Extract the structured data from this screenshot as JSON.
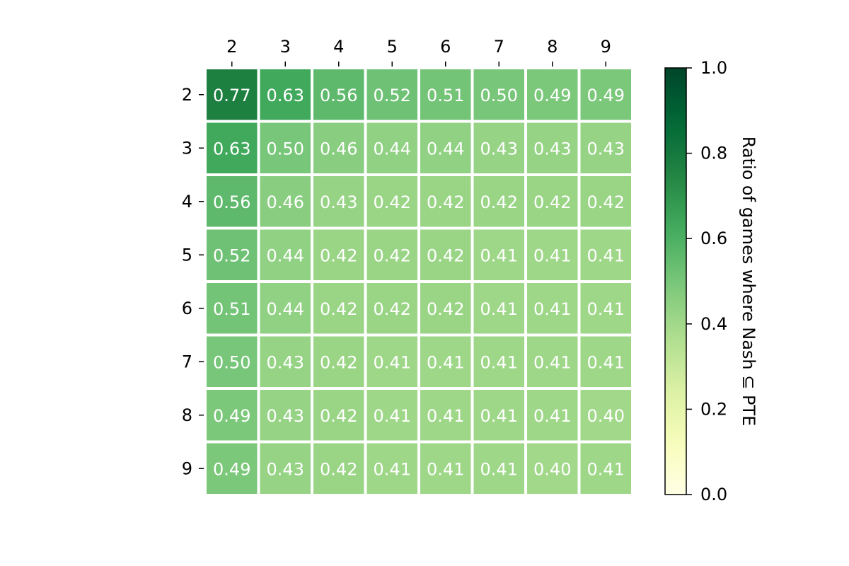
{
  "chart_data": {
    "type": "heatmap",
    "x_categories": [
      "2",
      "3",
      "4",
      "5",
      "6",
      "7",
      "8",
      "9"
    ],
    "y_categories": [
      "2",
      "3",
      "4",
      "5",
      "6",
      "7",
      "8",
      "9"
    ],
    "values": [
      [
        0.77,
        0.63,
        0.56,
        0.52,
        0.51,
        0.5,
        0.49,
        0.49
      ],
      [
        0.63,
        0.5,
        0.46,
        0.44,
        0.44,
        0.43,
        0.43,
        0.43
      ],
      [
        0.56,
        0.46,
        0.43,
        0.42,
        0.42,
        0.42,
        0.42,
        0.42
      ],
      [
        0.52,
        0.44,
        0.42,
        0.42,
        0.42,
        0.41,
        0.41,
        0.41
      ],
      [
        0.51,
        0.44,
        0.42,
        0.42,
        0.42,
        0.41,
        0.41,
        0.41
      ],
      [
        0.5,
        0.43,
        0.42,
        0.41,
        0.41,
        0.41,
        0.41,
        0.41
      ],
      [
        0.49,
        0.43,
        0.42,
        0.41,
        0.41,
        0.41,
        0.41,
        0.4
      ],
      [
        0.49,
        0.43,
        0.42,
        0.41,
        0.41,
        0.41,
        0.4,
        0.41
      ]
    ],
    "value_format": "0.00",
    "colormap": "YlGn",
    "color_range": [
      0.0,
      1.0
    ],
    "x_axis_position": "top",
    "colorbar": {
      "label": "Ratio of games where Nash ⊆ PTE",
      "ticks": [
        "0.0",
        "0.2",
        "0.4",
        "0.6",
        "0.8",
        "1.0"
      ],
      "tick_values": [
        0.0,
        0.2,
        0.4,
        0.6,
        0.8,
        1.0
      ],
      "position": "right"
    },
    "title": "",
    "xlabel": "",
    "ylabel": ""
  }
}
